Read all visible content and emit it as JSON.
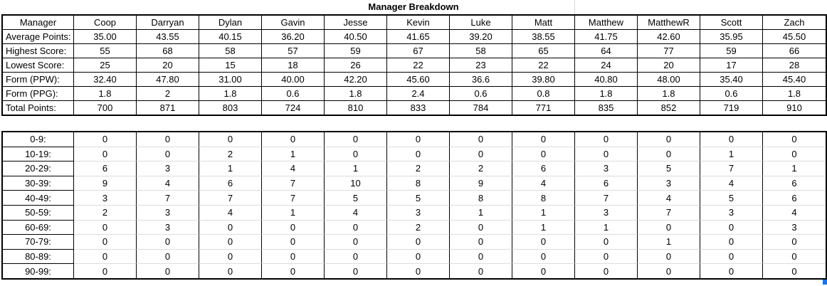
{
  "title": "Manager Breakdown",
  "colors": {
    "table_border": "#000000",
    "gridline_gray": "#dcdcdc",
    "selection_blue": "#1a73e8"
  },
  "stats_table": {
    "header": [
      "Manager",
      "Coop",
      "Darryan",
      "Dylan",
      "Gavin",
      "Jesse",
      "Kevin",
      "Luke",
      "Matt",
      "Matthew",
      "MatthewR",
      "Scott",
      "Zach"
    ],
    "rows": [
      {
        "label": "Average Points:",
        "values": [
          "35.00",
          "43.55",
          "40.15",
          "36.20",
          "40.50",
          "41.65",
          "39.20",
          "38.55",
          "41.75",
          "42.60",
          "35.95",
          "45.50"
        ]
      },
      {
        "label": "Highest Score:",
        "values": [
          "55",
          "68",
          "58",
          "57",
          "59",
          "67",
          "58",
          "65",
          "64",
          "77",
          "59",
          "66"
        ]
      },
      {
        "label": "Lowest Score:",
        "values": [
          "25",
          "20",
          "15",
          "18",
          "26",
          "22",
          "23",
          "22",
          "24",
          "20",
          "17",
          "28"
        ]
      },
      {
        "label": "Form (PPW):",
        "values": [
          "32.40",
          "47.80",
          "31.00",
          "40.00",
          "42.20",
          "45.60",
          "36.6",
          "39.80",
          "40.80",
          "48.00",
          "35.40",
          "45.40"
        ]
      },
      {
        "label": "Form (PPG):",
        "values": [
          "1.8",
          "2",
          "1.8",
          "0.6",
          "1.8",
          "2.4",
          "0.6",
          "0.8",
          "1.8",
          "1.8",
          "0.6",
          "1.8"
        ]
      },
      {
        "label": "Total Points:",
        "values": [
          "700",
          "871",
          "803",
          "724",
          "810",
          "833",
          "784",
          "771",
          "835",
          "852",
          "719",
          "910"
        ]
      }
    ]
  },
  "distribution_table": {
    "rows": [
      {
        "label": "0-9:",
        "values": [
          "0",
          "0",
          "0",
          "0",
          "0",
          "0",
          "0",
          "0",
          "0",
          "0",
          "0",
          "0"
        ]
      },
      {
        "label": "10-19:",
        "values": [
          "0",
          "0",
          "2",
          "1",
          "0",
          "0",
          "0",
          "0",
          "0",
          "0",
          "1",
          "0"
        ]
      },
      {
        "label": "20-29:",
        "values": [
          "6",
          "3",
          "1",
          "4",
          "1",
          "2",
          "2",
          "6",
          "3",
          "5",
          "7",
          "1"
        ]
      },
      {
        "label": "30-39:",
        "values": [
          "9",
          "4",
          "6",
          "7",
          "10",
          "8",
          "9",
          "4",
          "6",
          "3",
          "4",
          "6"
        ]
      },
      {
        "label": "40-49:",
        "values": [
          "3",
          "7",
          "7",
          "7",
          "5",
          "5",
          "8",
          "8",
          "7",
          "4",
          "5",
          "6"
        ]
      },
      {
        "label": "50-59:",
        "values": [
          "2",
          "3",
          "4",
          "1",
          "4",
          "3",
          "1",
          "1",
          "3",
          "7",
          "3",
          "4"
        ]
      },
      {
        "label": "60-69:",
        "values": [
          "0",
          "3",
          "0",
          "0",
          "0",
          "2",
          "0",
          "1",
          "1",
          "0",
          "0",
          "3"
        ]
      },
      {
        "label": "70-79:",
        "values": [
          "0",
          "0",
          "0",
          "0",
          "0",
          "0",
          "0",
          "0",
          "0",
          "1",
          "0",
          "0"
        ]
      },
      {
        "label": "80-89:",
        "values": [
          "0",
          "0",
          "0",
          "0",
          "0",
          "0",
          "0",
          "0",
          "0",
          "0",
          "0",
          "0"
        ]
      },
      {
        "label": "90-99:",
        "values": [
          "0",
          "0",
          "0",
          "0",
          "0",
          "0",
          "0",
          "0",
          "0",
          "0",
          "0",
          "0"
        ]
      }
    ]
  }
}
